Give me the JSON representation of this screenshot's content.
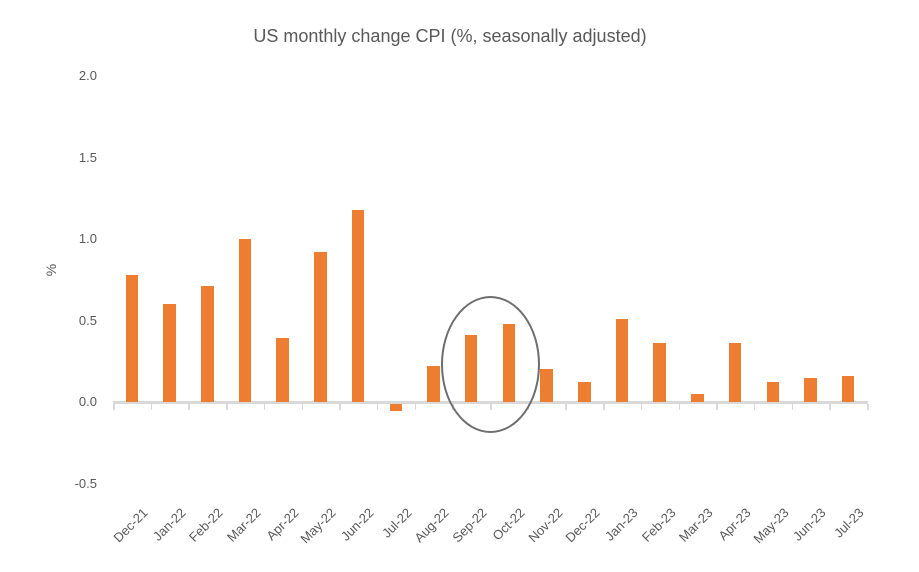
{
  "chart_data": {
    "type": "bar",
    "title": "US monthly change CPI (%, seasonally adjusted)",
    "xlabel": "",
    "ylabel": "%",
    "categories": [
      "Dec-21",
      "Jan-22",
      "Feb-22",
      "Mar-22",
      "Apr-22",
      "May-22",
      "Jun-22",
      "Jul-22",
      "Aug-22",
      "Sep-22",
      "Oct-22",
      "Nov-22",
      "Dec-22",
      "Jan-23",
      "Feb-23",
      "Mar-23",
      "Apr-23",
      "May-23",
      "Jun-23",
      "Jul-23"
    ],
    "values": [
      0.78,
      0.6,
      0.71,
      1.0,
      0.39,
      0.92,
      1.18,
      -0.04,
      0.22,
      0.41,
      0.48,
      0.2,
      0.12,
      0.51,
      0.36,
      0.05,
      0.36,
      0.12,
      0.15,
      0.16
    ],
    "ylim": [
      -0.5,
      2.0
    ],
    "yticks": [
      {
        "label": "2.0",
        "value": 2.0
      },
      {
        "label": "1.5",
        "value": 1.5
      },
      {
        "label": "1.0",
        "value": 1.0
      },
      {
        "label": "0.5",
        "value": 0.5
      },
      {
        "label": "0.0",
        "value": 0.0
      },
      {
        "label": "-0.5",
        "value": -0.5
      }
    ],
    "grid": false,
    "legend": "none",
    "bar_color": "#ED7D31",
    "axis_color": "#D9D9D9",
    "text_color": "#595959",
    "annotation": {
      "shape": "ellipse",
      "highlights": [
        "Sep-22",
        "Oct-22"
      ],
      "color": "#6E6E6E"
    }
  }
}
